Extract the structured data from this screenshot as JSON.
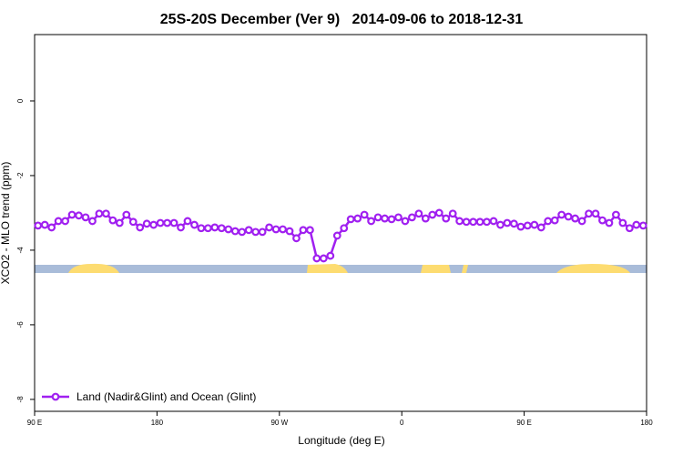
{
  "chart_data": {
    "type": "line",
    "title": "25S-20S December (Ver 9)   2014-09-06 to 2018-12-31",
    "x_label": "Longitude (deg E)",
    "y_label": "XCO2 - MLO trend (ppm)",
    "xlim": [
      90,
      540
    ],
    "ylim": [
      -8.32,
      1.78
    ],
    "xticks": [
      {
        "value": 90,
        "label": "90 E"
      },
      180,
      {
        "value": 270,
        "label": "90 W"
      },
      {
        "value": 360,
        "label": "0"
      },
      {
        "value": 450,
        "label": "90 E"
      },
      {
        "value": 540,
        "label": "180"
      }
    ],
    "yticks": [
      0,
      -2,
      -4,
      -6,
      -8
    ],
    "legend": "bottom-left",
    "series": [
      {
        "name": "Land (Nadir&Glint) and Ocean (Glint)",
        "color": "#a020f0",
        "x": [
          92.5,
          97.5,
          102.5,
          107.5,
          112.5,
          117.5,
          122.5,
          127.5,
          132.5,
          137.5,
          142.5,
          147.5,
          152.5,
          157.5,
          162.5,
          167.5,
          172.5,
          177.5,
          182.5,
          187.5,
          192.5,
          197.5,
          202.5,
          207.5,
          212.5,
          217.5,
          222.5,
          227.5,
          232.5,
          237.5,
          242.5,
          247.5,
          252.5,
          257.5,
          262.5,
          267.5,
          272.5,
          277.5,
          282.5,
          287.5,
          292.5,
          297.5,
          302.5,
          307.5,
          312.5,
          317.5,
          322.5,
          327.5,
          332.5,
          337.5,
          342.5,
          347.5,
          352.5,
          357.5,
          362.5,
          367.5,
          372.5,
          377.5,
          382.5,
          387.5,
          392.5,
          397.5,
          402.5,
          407.5,
          412.5,
          417.5,
          422.5,
          427.5,
          432.5,
          437.5,
          442.5,
          447.5,
          452.5,
          457.5,
          462.5,
          467.5,
          472.5,
          477.5,
          482.5,
          487.5,
          492.5,
          497.5,
          502.5,
          507.5,
          512.5,
          517.5,
          522.5,
          527.5,
          532.5,
          537.5
        ],
        "values": [
          -3.34,
          -3.32,
          -3.39,
          -3.22,
          -3.22,
          -3.05,
          -3.07,
          -3.12,
          -3.22,
          -3.02,
          -3.02,
          -3.2,
          -3.27,
          -3.05,
          -3.24,
          -3.39,
          -3.29,
          -3.32,
          -3.27,
          -3.27,
          -3.27,
          -3.39,
          -3.22,
          -3.32,
          -3.41,
          -3.41,
          -3.39,
          -3.41,
          -3.44,
          -3.49,
          -3.51,
          -3.46,
          -3.51,
          -3.51,
          -3.39,
          -3.44,
          -3.44,
          -3.49,
          -3.68,
          -3.46,
          -3.46,
          -4.22,
          -4.22,
          -4.15,
          -3.61,
          -3.41,
          -3.17,
          -3.15,
          -3.05,
          -3.22,
          -3.12,
          -3.15,
          -3.17,
          -3.12,
          -3.22,
          -3.12,
          -3.02,
          -3.15,
          -3.05,
          -3.0,
          -3.15,
          -3.02,
          -3.22,
          -3.24,
          -3.24,
          -3.24,
          -3.24,
          -3.22,
          -3.32,
          -3.27,
          -3.29,
          -3.37,
          -3.34,
          -3.32,
          -3.39,
          -3.22,
          -3.2,
          -3.05,
          -3.1,
          -3.15,
          -3.22,
          -3.02,
          -3.02,
          -3.2,
          -3.27,
          -3.05,
          -3.27,
          -3.41,
          -3.32,
          -3.34
        ]
      }
    ]
  }
}
